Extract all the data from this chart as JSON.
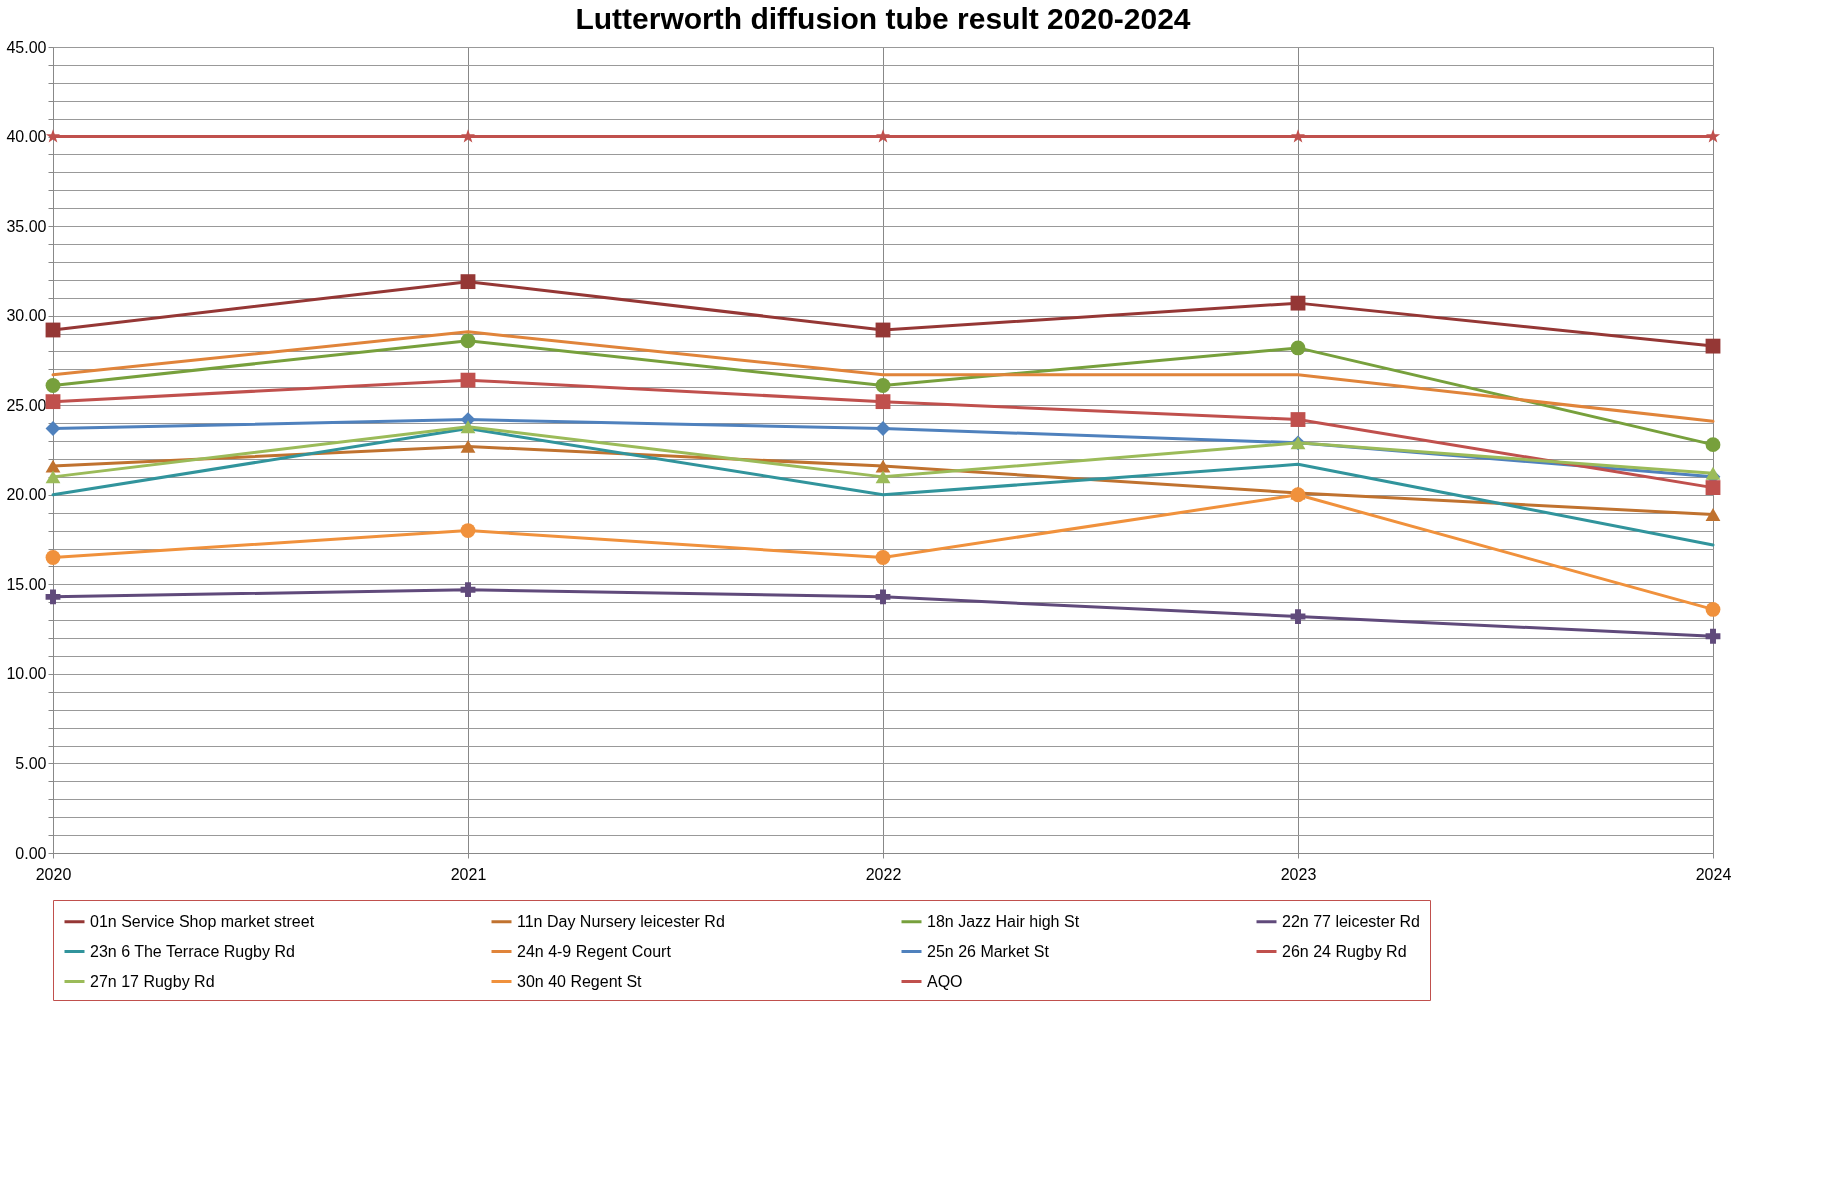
{
  "chart_data": {
    "type": "line",
    "title": "Lutterworth diffusion tube result 2020-2024",
    "categories": [
      "2020",
      "2021",
      "2022",
      "2023",
      "2024"
    ],
    "series": [
      {
        "name": "01n Service Shop market street",
        "color": "#953735",
        "marker": "square",
        "values": [
          29.2,
          31.9,
          29.2,
          30.7,
          28.3
        ]
      },
      {
        "name": "11n Day Nursery leicester Rd",
        "color": "#c0722f",
        "marker": "triangle",
        "values": [
          21.6,
          22.7,
          21.6,
          20.1,
          18.9
        ]
      },
      {
        "name": "18n Jazz Hair high St",
        "color": "#77a03c",
        "marker": "circle",
        "values": [
          26.1,
          28.6,
          26.1,
          28.2,
          22.8
        ]
      },
      {
        "name": "22n 77 leicester Rd",
        "color": "#604a7b",
        "marker": "cross",
        "values": [
          14.3,
          14.7,
          14.3,
          13.2,
          12.1
        ]
      },
      {
        "name": "23n 6 The Terrace Rugby Rd",
        "color": "#31949c",
        "marker": "none",
        "values": [
          20.0,
          23.7,
          20.0,
          21.7,
          17.2
        ]
      },
      {
        "name": "24n 4-9 Regent Court",
        "color": "#e0843a",
        "marker": "none",
        "values": [
          26.7,
          29.1,
          26.7,
          26.7,
          24.1
        ]
      },
      {
        "name": "25n 26 Market St",
        "color": "#4f81bd",
        "marker": "diamond",
        "values": [
          23.7,
          24.2,
          23.7,
          22.9,
          21.0
        ]
      },
      {
        "name": "26n 24 Rugby Rd",
        "color": "#c0504d",
        "marker": "square",
        "values": [
          25.2,
          26.4,
          25.2,
          24.2,
          20.4
        ]
      },
      {
        "name": "27n 17 Rugby Rd",
        "color": "#9bbb59",
        "marker": "triangle",
        "values": [
          21.0,
          23.8,
          21.0,
          22.9,
          21.2
        ]
      },
      {
        "name": "30n 40 Regent St",
        "color": "#f0913c",
        "marker": "circle",
        "values": [
          16.5,
          18.0,
          16.5,
          20.0,
          13.6
        ]
      },
      {
        "name": "AQO",
        "color": "#c0504d",
        "marker": "star",
        "values": [
          40,
          40,
          40,
          40,
          40
        ]
      }
    ],
    "ylim": [
      0,
      45
    ],
    "yticks": [
      {
        "value": 0,
        "label": "0.00"
      },
      {
        "value": 1,
        "label": null
      },
      {
        "value": 2,
        "label": null
      },
      {
        "value": 3,
        "label": null
      },
      {
        "value": 4,
        "label": null
      },
      {
        "value": 5,
        "label": "5.00"
      },
      {
        "value": 6,
        "label": null
      },
      {
        "value": 7,
        "label": null
      },
      {
        "value": 8,
        "label": null
      },
      {
        "value": 9,
        "label": null
      },
      {
        "value": 10,
        "label": "10.00"
      },
      {
        "value": 11,
        "label": null
      },
      {
        "value": 12,
        "label": null
      },
      {
        "value": 13,
        "label": null
      },
      {
        "value": 14,
        "label": null
      },
      {
        "value": 15,
        "label": "15.00"
      },
      {
        "value": 16,
        "label": null
      },
      {
        "value": 17,
        "label": null
      },
      {
        "value": 18,
        "label": null
      },
      {
        "value": 19,
        "label": null
      },
      {
        "value": 20,
        "label": "20.00"
      },
      {
        "value": 21,
        "label": null
      },
      {
        "value": 22,
        "label": null
      },
      {
        "value": 23,
        "label": null
      },
      {
        "value": 24,
        "label": null
      },
      {
        "value": 25,
        "label": "25.00"
      },
      {
        "value": 26,
        "label": null
      },
      {
        "value": 27,
        "label": null
      },
      {
        "value": 28,
        "label": null
      },
      {
        "value": 29,
        "label": null
      },
      {
        "value": 30,
        "label": "30.00"
      },
      {
        "value": 31,
        "label": null
      },
      {
        "value": 32,
        "label": null
      },
      {
        "value": 33,
        "label": null
      },
      {
        "value": 34,
        "label": null
      },
      {
        "value": 35,
        "label": "35.00"
      },
      {
        "value": 36,
        "label": null
      },
      {
        "value": 37,
        "label": null
      },
      {
        "value": 38,
        "label": null
      },
      {
        "value": 39,
        "label": null
      },
      {
        "value": 40,
        "label": "40.00"
      },
      {
        "value": 41,
        "label": null
      },
      {
        "value": 42,
        "label": null
      },
      {
        "value": 43,
        "label": null
      },
      {
        "value": 44,
        "label": null
      },
      {
        "value": 45,
        "label": "45.00"
      }
    ],
    "grid": true,
    "legend": "bottom"
  }
}
